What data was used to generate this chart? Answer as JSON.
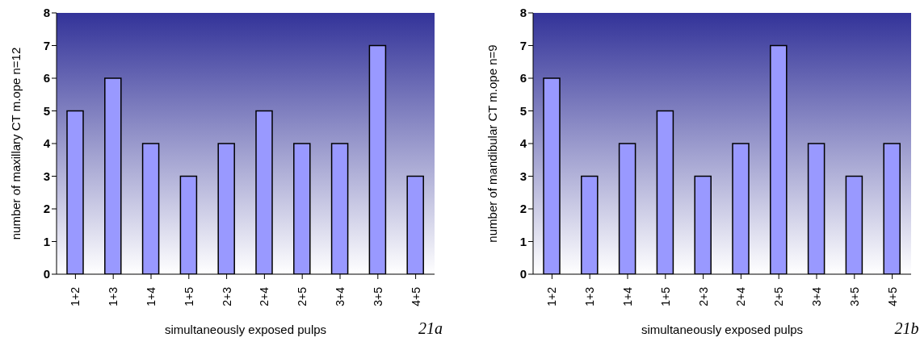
{
  "chart_data": [
    {
      "type": "bar",
      "ylabel": "number of maxillary CT m.ope n=12",
      "xlabel": "simultaneously exposed pulps",
      "categories": [
        "1+2",
        "1+3",
        "1+4",
        "1+5",
        "2+3",
        "2+4",
        "2+5",
        "3+4",
        "3+5",
        "4+5"
      ],
      "values": [
        5,
        6,
        4,
        3,
        4,
        5,
        4,
        4,
        7,
        3
      ],
      "color": "#9999ff",
      "ylim": [
        0,
        8
      ],
      "yticks": [
        0,
        1,
        2,
        3,
        4,
        5,
        6,
        7,
        8
      ],
      "annotations": [
        "21a"
      ]
    },
    {
      "type": "bar",
      "ylabel": "number of mandibular CT m.ope n=9",
      "xlabel": "simultaneously exposed pulps",
      "categories": [
        "1+2",
        "1+3",
        "1+4",
        "1+5",
        "2+3",
        "2+4",
        "2+5",
        "3+4",
        "3+5",
        "4+5"
      ],
      "values": [
        6,
        3,
        4,
        5,
        3,
        4,
        7,
        4,
        3,
        4
      ],
      "color": "#9999ff",
      "ylim": [
        0,
        8
      ],
      "yticks": [
        0,
        1,
        2,
        3,
        4,
        5,
        6,
        7,
        8
      ],
      "annotations": [
        "21b"
      ]
    }
  ]
}
